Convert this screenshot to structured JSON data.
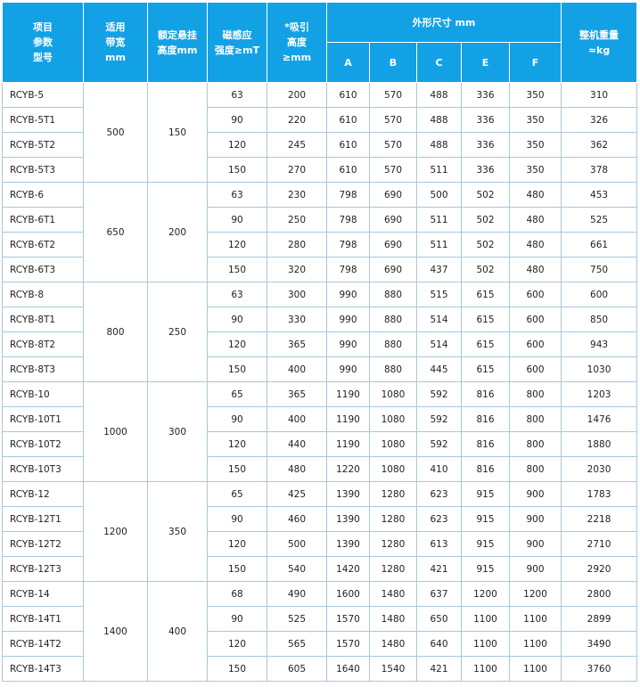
{
  "header": {
    "model": [
      "项目",
      "参数",
      "型号"
    ],
    "band": [
      "适用",
      "带宽",
      "mm"
    ],
    "height": [
      "额定悬挂",
      "高度mm"
    ],
    "field": [
      "磁感应",
      "强度≥mT"
    ],
    "attract": [
      "*吸引",
      "高度",
      "≥mm"
    ],
    "dims": "外形尺寸 mm",
    "dim_cols": [
      "A",
      "B",
      "C",
      "E",
      "F"
    ],
    "weight": [
      "整机重量",
      "≈kg"
    ]
  },
  "table": {
    "groups": [
      {
        "band": 500,
        "height": 150,
        "rows": [
          [
            "RCYB-5",
            63,
            200,
            610,
            570,
            488,
            336,
            350,
            310
          ],
          [
            "RCYB-5T1",
            90,
            220,
            610,
            570,
            488,
            336,
            350,
            326
          ],
          [
            "RCYB-5T2",
            120,
            245,
            610,
            570,
            488,
            336,
            350,
            362
          ],
          [
            "RCYB-5T3",
            150,
            270,
            610,
            570,
            511,
            336,
            350,
            378
          ]
        ]
      },
      {
        "band": 650,
        "height": 200,
        "rows": [
          [
            "RCYB-6",
            63,
            230,
            798,
            690,
            500,
            502,
            480,
            453
          ],
          [
            "RCYB-6T1",
            90,
            250,
            798,
            690,
            511,
            502,
            480,
            525
          ],
          [
            "RCYB-6T2",
            120,
            280,
            798,
            690,
            511,
            502,
            480,
            661
          ],
          [
            "RCYB-6T3",
            150,
            320,
            798,
            690,
            437,
            502,
            480,
            750
          ]
        ]
      },
      {
        "band": 800,
        "height": 250,
        "rows": [
          [
            "RCYB-8",
            63,
            300,
            990,
            880,
            515,
            615,
            600,
            600
          ],
          [
            "RCYB-8T1",
            90,
            330,
            990,
            880,
            514,
            615,
            600,
            850
          ],
          [
            "RCYB-8T2",
            120,
            365,
            990,
            880,
            514,
            615,
            600,
            943
          ],
          [
            "RCYB-8T3",
            150,
            400,
            990,
            880,
            445,
            615,
            600,
            1030
          ]
        ]
      },
      {
        "band": 1000,
        "height": 300,
        "rows": [
          [
            "RCYB-10",
            65,
            365,
            1190,
            1080,
            592,
            816,
            800,
            1203
          ],
          [
            "RCYB-10T1",
            90,
            400,
            1190,
            1080,
            592,
            816,
            800,
            1476
          ],
          [
            "RCYB-10T2",
            120,
            440,
            1190,
            1080,
            592,
            816,
            800,
            1880
          ],
          [
            "RCYB-10T3",
            150,
            480,
            1220,
            1080,
            410,
            816,
            800,
            2030
          ]
        ]
      },
      {
        "band": 1200,
        "height": 350,
        "rows": [
          [
            "RCYB-12",
            65,
            425,
            1390,
            1280,
            623,
            915,
            900,
            1783
          ],
          [
            "RCYB-12T1",
            90,
            460,
            1390,
            1280,
            623,
            915,
            900,
            2218
          ],
          [
            "RCYB-12T2",
            120,
            500,
            1390,
            1280,
            613,
            915,
            900,
            2710
          ],
          [
            "RCYB-12T3",
            150,
            540,
            1420,
            1280,
            421,
            915,
            900,
            2920
          ]
        ]
      },
      {
        "band": 1400,
        "height": 400,
        "rows": [
          [
            "RCYB-14",
            68,
            490,
            1600,
            1480,
            637,
            1200,
            1200,
            2800
          ],
          [
            "RCYB-14T1",
            90,
            525,
            1570,
            1480,
            650,
            1100,
            1100,
            2899
          ],
          [
            "RCYB-14T2",
            120,
            565,
            1570,
            1480,
            640,
            1100,
            1100,
            3490
          ],
          [
            "RCYB-14T3",
            150,
            605,
            1640,
            1540,
            421,
            1100,
            1100,
            3760
          ]
        ]
      }
    ]
  }
}
